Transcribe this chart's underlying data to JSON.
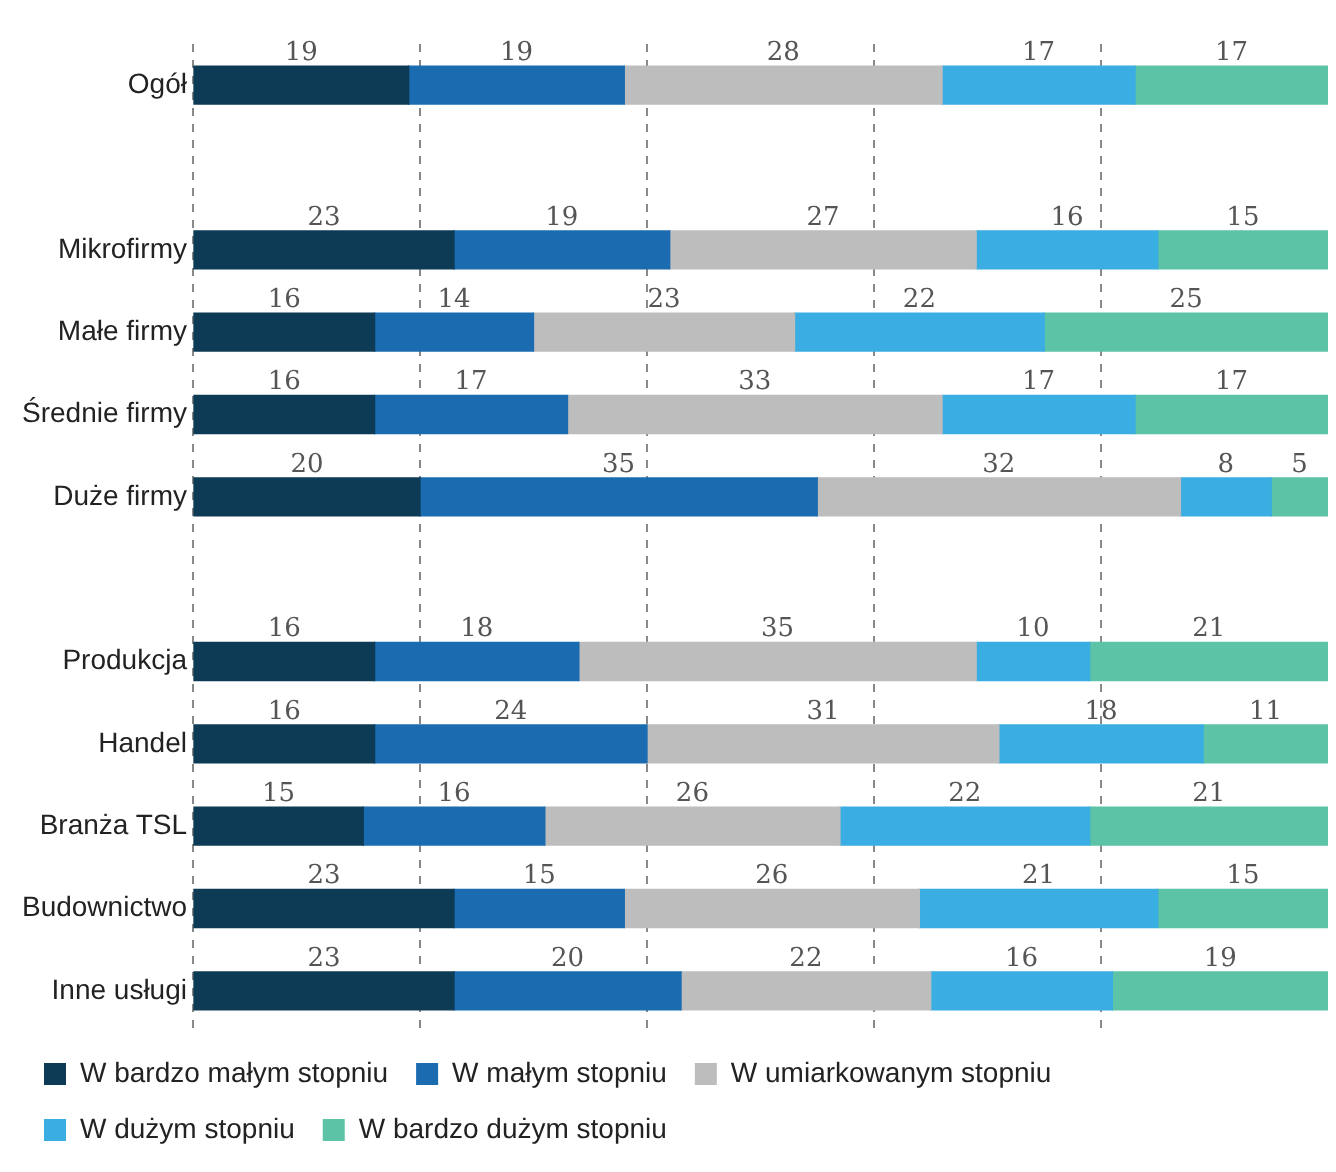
{
  "chart_data": {
    "type": "bar",
    "orientation": "horizontal",
    "stacked": true,
    "categories": [
      "Ogół",
      null,
      "Mikrofirmy",
      "Małe firmy",
      "Średnie firmy",
      "Duże firmy",
      null,
      "Produkcja",
      "Handel",
      "Branża TSL",
      "Budownictwo",
      "Inne usługi"
    ],
    "series": [
      {
        "name": "W bardzo małym stopniu",
        "color": "#0d3b55",
        "values": [
          19,
          null,
          23,
          16,
          16,
          20,
          null,
          16,
          16,
          15,
          23,
          23
        ]
      },
      {
        "name": "W małym stopniu",
        "color": "#1a6bb0",
        "values": [
          19,
          null,
          19,
          14,
          17,
          35,
          null,
          18,
          24,
          16,
          15,
          20
        ]
      },
      {
        "name": "W umiarkowanym stopniu",
        "color": "#bdbdbd",
        "values": [
          28,
          null,
          27,
          23,
          33,
          32,
          null,
          35,
          31,
          26,
          26,
          22
        ]
      },
      {
        "name": "W dużym stopniu",
        "color": "#3aade3",
        "values": [
          17,
          null,
          16,
          22,
          17,
          8,
          null,
          10,
          18,
          22,
          21,
          16
        ]
      },
      {
        "name": "W bardzo dużym stopniu",
        "color": "#5cc3a6",
        "values": [
          17,
          null,
          15,
          25,
          17,
          5,
          null,
          21,
          11,
          21,
          15,
          19
        ]
      }
    ],
    "xlim": [
      0,
      100
    ],
    "xticks": [
      {
        "value": 0,
        "label": null
      },
      {
        "value": 20,
        "label": null
      },
      {
        "value": 40,
        "label": null
      },
      {
        "value": 60,
        "label": null
      },
      {
        "value": 80,
        "label": null
      }
    ],
    "tick_labels": "y",
    "grid": "x",
    "line_style": "dashed",
    "legend": "bottom",
    "data_labels": true
  }
}
